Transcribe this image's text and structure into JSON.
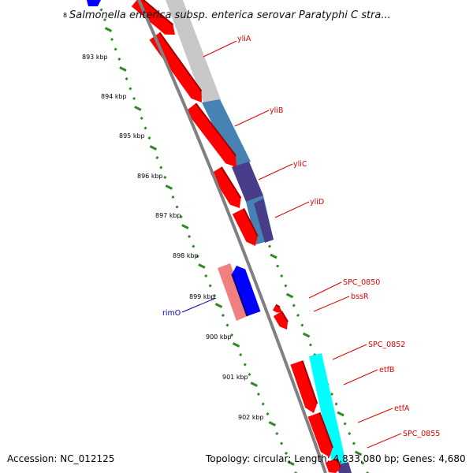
{
  "title": "Salmonella enterica subsp. enterica serovar Paratyphi C stra...",
  "footer": {
    "accession": "Accession: NC_012125",
    "summary": "Topology: circular; Length: 4,833,080 bp; Genes: 4,680"
  },
  "colors": {
    "backbone": "#808080",
    "tick": "#2e8b22",
    "label_forward": "#dd0000",
    "label_reverse": "#0000aa",
    "cds": "#ff0000",
    "cds_shadow": "#a00000",
    "cog_grey": "#c8c8c8",
    "cog_steel": "#4682b4",
    "cog_slate": "#483d8b",
    "cog_cyan": "#00ffff",
    "cog_salmon": "#f08080",
    "cog_blue": "#0000ff"
  },
  "tick_labels": [
    "8",
    "893 kbp",
    "894 kbp",
    "895 kbp",
    "896 kbp",
    "897 kbp",
    "898 kbp",
    "899 kbp",
    "900 kbp",
    "901 kbp",
    "902 kbp"
  ],
  "genes": [
    {
      "name": "yliA",
      "strand": "forward",
      "cog": "cog_grey"
    },
    {
      "name": "yliB",
      "strand": "forward",
      "cog": "cog_steel"
    },
    {
      "name": "yliC",
      "strand": "forward",
      "cog": "cog_slate"
    },
    {
      "name": "yliD",
      "strand": "forward",
      "cog": "cog_steel"
    },
    {
      "name": "rimO",
      "strand": "reverse",
      "cog": "cog_salmon"
    },
    {
      "name": "SPC_0850",
      "strand": "forward",
      "cog": ""
    },
    {
      "name": "bssR",
      "strand": "forward",
      "cog": ""
    },
    {
      "name": "SPC_0852",
      "strand": "forward",
      "cog": "cog_cyan"
    },
    {
      "name": "etfB",
      "strand": "forward",
      "cog": "cog_cyan"
    },
    {
      "name": "etfA",
      "strand": "forward",
      "cog": "cog_cyan"
    },
    {
      "name": "SPC_0855",
      "strand": "forward",
      "cog": "cog_slate"
    }
  ]
}
